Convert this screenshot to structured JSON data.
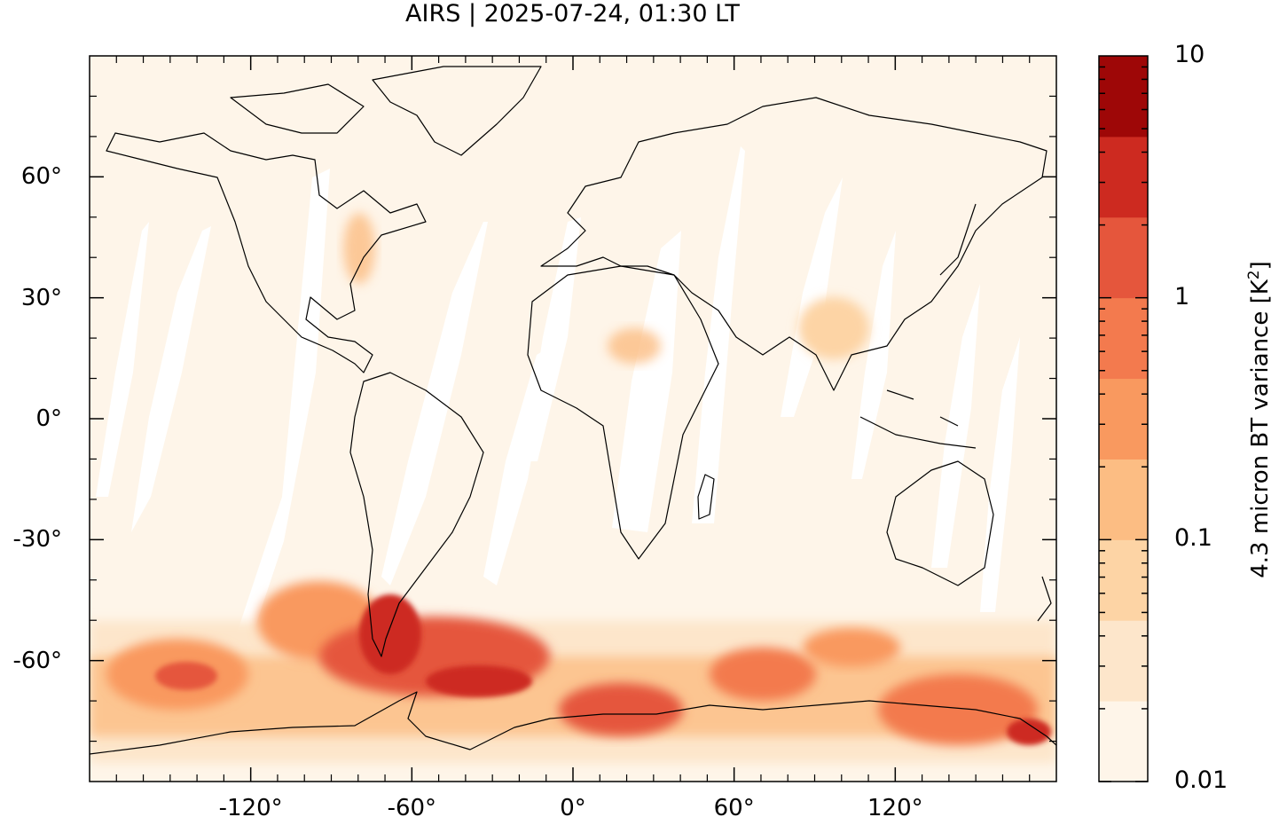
{
  "title": "AIRS | 2025-07-24, 01:30 LT",
  "map": {
    "projection": "equirectangular",
    "lon_range": [
      -180,
      180
    ],
    "lat_range": [
      -90,
      90
    ],
    "y_ticks": [
      {
        "value": 60,
        "label": "60°"
      },
      {
        "value": 30,
        "label": "30°"
      },
      {
        "value": 0,
        "label": "0°"
      },
      {
        "value": -30,
        "label": "-30°"
      },
      {
        "value": -60,
        "label": "-60°"
      }
    ],
    "x_ticks": [
      {
        "value": -120,
        "label": "-120°"
      },
      {
        "value": -60,
        "label": "-60°"
      },
      {
        "value": 0,
        "label": "0°"
      },
      {
        "value": 60,
        "label": "60°"
      },
      {
        "value": 120,
        "label": "120°"
      }
    ],
    "background_color": "#fef5e9",
    "swath_gap_color": "#ffffff",
    "coastline_color": "#000000"
  },
  "colorbar": {
    "label": "4.3 micron BT variance [K",
    "label_superscript": "2",
    "label_suffix": "]",
    "scale": "log",
    "range": [
      0.01,
      10
    ],
    "tick_labels": [
      {
        "value": 10,
        "label": "10"
      },
      {
        "value": 1,
        "label": "1"
      },
      {
        "value": 0.1,
        "label": "0.1"
      },
      {
        "value": 0.01,
        "label": "0.01"
      }
    ],
    "colors": [
      "#fef5e9",
      "#fde6cb",
      "#fdd4a5",
      "#fcbd83",
      "#f9995f",
      "#f37a4e",
      "#e5563c",
      "#cd2a20",
      "#9e0707"
    ]
  }
}
